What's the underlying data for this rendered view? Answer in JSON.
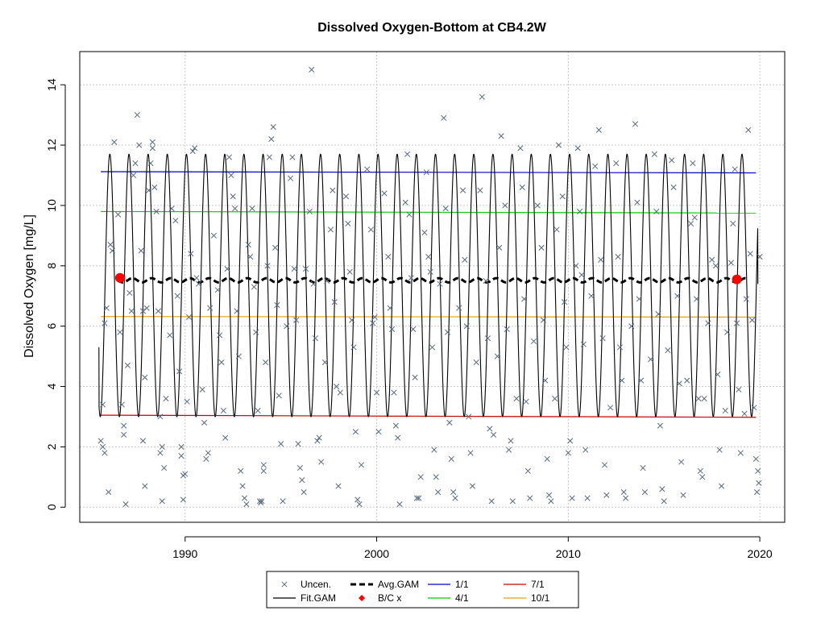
{
  "chart_data": {
    "type": "scatter",
    "title": "Dissolved Oxygen-Bottom at CB4.2W",
    "xlabel": "",
    "ylabel": "Dissolved Oxygen [mg/L]",
    "xlim": [
      1984.5,
      2021.3
    ],
    "ylim": [
      -0.5,
      15.1
    ],
    "x_ticks": [
      1990,
      2000,
      2010,
      2020
    ],
    "y_ticks": [
      0,
      2,
      4,
      6,
      8,
      10,
      12,
      14
    ],
    "x_tick_labels": [
      "1990",
      "2000",
      "2010",
      "2020"
    ],
    "y_tick_labels": [
      "0",
      "2",
      "4",
      "6",
      "8",
      "10",
      "12",
      "14"
    ],
    "grid": true,
    "legend_position": "bottom-center",
    "colors": {
      "uncensored": "#5a6a80",
      "fit_gam": "#000000",
      "avg_gam": "#000000",
      "bc": "#ff0000",
      "p1_1": "#0000cd",
      "p4_1": "#00cd00",
      "p7_1": "#cd0000",
      "p10_1": "#e8a000"
    },
    "legend": [
      {
        "key": "uncensored",
        "label": "Uncen.",
        "symbol": "x"
      },
      {
        "key": "avg_gam",
        "label": "Avg.GAM",
        "symbol": "dash-thick"
      },
      {
        "key": "p1_1",
        "label": "1/1",
        "symbol": "line"
      },
      {
        "key": "p7_1",
        "label": "7/1",
        "symbol": "line"
      },
      {
        "key": "fit_gam",
        "label": "Fit.GAM",
        "symbol": "line"
      },
      {
        "key": "bc",
        "label": "B/C x",
        "symbol": "diamond"
      },
      {
        "key": "p4_1",
        "label": "4/1",
        "symbol": "line"
      },
      {
        "key": "p10_1",
        "label": "10/1",
        "symbol": "line"
      }
    ],
    "fit_gam": {
      "start": 1985.5,
      "end": 2019.9,
      "mean": 7.35,
      "amplitude": 4.35,
      "peak_fraction": 0.07,
      "start_value": 5.3,
      "end_value": 7.4
    },
    "avg_gam": {
      "start": 1986.5,
      "end": 2019.3,
      "mean": 7.52,
      "wiggle": 0.07
    },
    "bc_points": [
      {
        "x": 1986.6,
        "y": 7.6
      },
      {
        "x": 2018.8,
        "y": 7.55
      }
    ],
    "reference_lines": [
      {
        "key": "p1_1",
        "x": [
          1985.6,
          2019.8
        ],
        "y": [
          11.12,
          11.08
        ]
      },
      {
        "key": "p4_1",
        "x": [
          1985.6,
          2019.8
        ],
        "y": [
          9.8,
          9.75
        ]
      },
      {
        "key": "p10_1",
        "x": [
          1985.6,
          2019.8
        ],
        "y": [
          6.32,
          6.3
        ]
      },
      {
        "key": "p7_1",
        "x": [
          1985.6,
          2019.8
        ],
        "y": [
          3.05,
          2.98
        ]
      }
    ],
    "uncensored_points": [
      [
        1985.6,
        2.2
      ],
      [
        1985.7,
        2.0
      ],
      [
        1985.8,
        1.8
      ],
      [
        1985.7,
        3.4
      ],
      [
        1985.8,
        6.1
      ],
      [
        1985.9,
        6.6
      ],
      [
        1986.0,
        0.5
      ],
      [
        1986.1,
        8.7
      ],
      [
        1986.2,
        8.5
      ],
      [
        1986.3,
        12.1
      ],
      [
        1986.5,
        9.7
      ],
      [
        1986.6,
        5.8
      ],
      [
        1986.7,
        3.4
      ],
      [
        1986.8,
        2.4
      ],
      [
        1986.8,
        2.7
      ],
      [
        1986.9,
        0.1
      ],
      [
        1987.0,
        4.7
      ],
      [
        1987.1,
        7.1
      ],
      [
        1987.2,
        6.5
      ],
      [
        1987.3,
        11.0
      ],
      [
        1987.4,
        11.4
      ],
      [
        1987.5,
        13.0
      ],
      [
        1987.6,
        12.0
      ],
      [
        1987.7,
        8.5
      ],
      [
        1987.8,
        6.5
      ],
      [
        1987.8,
        2.2
      ],
      [
        1987.9,
        0.7
      ],
      [
        1987.9,
        4.3
      ],
      [
        1988.0,
        6.6
      ],
      [
        1988.1,
        10.5
      ],
      [
        1988.2,
        11.4
      ],
      [
        1988.3,
        12.1
      ],
      [
        1988.3,
        11.9
      ],
      [
        1988.4,
        10.6
      ],
      [
        1988.5,
        9.8
      ],
      [
        1988.6,
        6.5
      ],
      [
        1988.7,
        3.0
      ],
      [
        1988.7,
        1.8
      ],
      [
        1988.8,
        0.2
      ],
      [
        1988.8,
        2.0
      ],
      [
        1988.9,
        1.3
      ],
      [
        1989.0,
        3.6
      ],
      [
        1989.2,
        5.7
      ],
      [
        1989.3,
        9.9
      ],
      [
        1989.5,
        9.5
      ],
      [
        1989.6,
        7.0
      ],
      [
        1989.7,
        4.5
      ],
      [
        1989.8,
        2.0
      ],
      [
        1989.8,
        1.7
      ],
      [
        1989.9,
        0.25
      ],
      [
        1989.9,
        1.05
      ],
      [
        1990.0,
        1.1
      ],
      [
        1990.1,
        3.5
      ],
      [
        1990.2,
        6.3
      ],
      [
        1990.3,
        8.4
      ],
      [
        1990.4,
        11.8
      ],
      [
        1990.5,
        11.9
      ],
      [
        1990.6,
        7.6
      ],
      [
        1990.7,
        7.4
      ],
      [
        1990.9,
        3.9
      ],
      [
        1991.0,
        2.8
      ],
      [
        1991.1,
        1.6
      ],
      [
        1991.2,
        1.8
      ],
      [
        1991.3,
        6.6
      ],
      [
        1991.5,
        9.0
      ],
      [
        1991.7,
        7.2
      ],
      [
        1991.8,
        5.7
      ],
      [
        1991.9,
        4.8
      ],
      [
        1992.0,
        3.2
      ],
      [
        1992.1,
        2.3
      ],
      [
        1992.2,
        7.9
      ],
      [
        1992.3,
        11.6
      ],
      [
        1992.4,
        11.0
      ],
      [
        1992.5,
        10.3
      ],
      [
        1992.6,
        9.9
      ],
      [
        1992.7,
        6.5
      ],
      [
        1992.8,
        5.0
      ],
      [
        1992.9,
        1.2
      ],
      [
        1993.0,
        0.7
      ],
      [
        1993.1,
        0.3
      ],
      [
        1993.2,
        0.1
      ],
      [
        1993.3,
        8.7
      ],
      [
        1993.4,
        8.3
      ],
      [
        1993.5,
        9.9
      ],
      [
        1993.6,
        7.3
      ],
      [
        1993.7,
        5.8
      ],
      [
        1993.8,
        3.2
      ],
      [
        1993.9,
        0.2
      ],
      [
        1993.95,
        0.15
      ],
      [
        1994.0,
        0.2
      ],
      [
        1994.1,
        1.4
      ],
      [
        1994.1,
        1.2
      ],
      [
        1994.2,
        4.8
      ],
      [
        1994.3,
        8.0
      ],
      [
        1994.4,
        11.6
      ],
      [
        1994.5,
        12.2
      ],
      [
        1994.6,
        12.6
      ],
      [
        1994.7,
        8.6
      ],
      [
        1994.8,
        6.7
      ],
      [
        1994.9,
        3.7
      ],
      [
        1995.0,
        2.1
      ],
      [
        1995.1,
        0.2
      ],
      [
        1995.3,
        6.0
      ],
      [
        1995.5,
        10.9
      ],
      [
        1995.6,
        11.6
      ],
      [
        1995.7,
        7.9
      ],
      [
        1995.8,
        6.2
      ],
      [
        1995.9,
        2.1
      ],
      [
        1996.0,
        1.3
      ],
      [
        1996.1,
        0.9
      ],
      [
        1996.2,
        0.5
      ],
      [
        1996.3,
        7.9
      ],
      [
        1996.5,
        9.8
      ],
      [
        1996.6,
        14.5
      ],
      [
        1996.7,
        7.4
      ],
      [
        1996.8,
        5.6
      ],
      [
        1996.9,
        2.2
      ],
      [
        1997.0,
        2.3
      ],
      [
        1997.1,
        1.5
      ],
      [
        1997.3,
        4.8
      ],
      [
        1997.4,
        7.5
      ],
      [
        1997.6,
        9.2
      ],
      [
        1997.7,
        10.5
      ],
      [
        1997.8,
        6.8
      ],
      [
        1997.9,
        4.0
      ],
      [
        1998.0,
        0.7
      ],
      [
        1998.1,
        3.8
      ],
      [
        1998.4,
        10.3
      ],
      [
        1998.5,
        9.4
      ],
      [
        1998.6,
        7.8
      ],
      [
        1998.7,
        6.2
      ],
      [
        1998.8,
        5.3
      ],
      [
        1998.9,
        2.5
      ],
      [
        1999.0,
        0.25
      ],
      [
        1999.1,
        0.1
      ],
      [
        1999.2,
        1.4
      ],
      [
        1999.5,
        11.2
      ],
      [
        1999.7,
        9.2
      ],
      [
        1999.8,
        6.1
      ],
      [
        1999.9,
        6.3
      ],
      [
        2000.0,
        3.8
      ],
      [
        2000.1,
        2.5
      ],
      [
        2000.4,
        10.4
      ],
      [
        2000.6,
        8.3
      ],
      [
        2000.7,
        6.6
      ],
      [
        2000.8,
        5.9
      ],
      [
        2000.9,
        3.8
      ],
      [
        2001.0,
        2.7
      ],
      [
        2001.1,
        2.3
      ],
      [
        2001.2,
        0.1
      ],
      [
        2001.5,
        10.1
      ],
      [
        2001.6,
        11.7
      ],
      [
        2001.7,
        9.7
      ],
      [
        2001.8,
        7.6
      ],
      [
        2001.9,
        5.9
      ],
      [
        2002.0,
        4.3
      ],
      [
        2002.1,
        0.3
      ],
      [
        2002.2,
        0.3
      ],
      [
        2002.3,
        1.0
      ],
      [
        2002.5,
        9.1
      ],
      [
        2002.6,
        11.1
      ],
      [
        2002.7,
        8.3
      ],
      [
        2002.8,
        7.8
      ],
      [
        2002.9,
        5.3
      ],
      [
        2003.0,
        1.9
      ],
      [
        2003.1,
        1.0
      ],
      [
        2003.2,
        0.5
      ],
      [
        2003.3,
        7.4
      ],
      [
        2003.5,
        12.9
      ],
      [
        2003.6,
        9.9
      ],
      [
        2003.7,
        5.8
      ],
      [
        2003.8,
        2.8
      ],
      [
        2003.9,
        1.6
      ],
      [
        2004.0,
        0.5
      ],
      [
        2004.1,
        0.3
      ],
      [
        2004.3,
        6.6
      ],
      [
        2004.5,
        10.5
      ],
      [
        2004.6,
        8.2
      ],
      [
        2004.7,
        6.0
      ],
      [
        2004.8,
        3.0
      ],
      [
        2004.9,
        1.8
      ],
      [
        2005.0,
        0.7
      ],
      [
        2005.2,
        4.8
      ],
      [
        2005.4,
        10.5
      ],
      [
        2005.5,
        13.6
      ],
      [
        2005.7,
        7.5
      ],
      [
        2005.8,
        5.6
      ],
      [
        2005.9,
        2.6
      ],
      [
        2006.0,
        0.2
      ],
      [
        2006.1,
        2.4
      ],
      [
        2006.3,
        5.0
      ],
      [
        2006.4,
        8.6
      ],
      [
        2006.5,
        12.3
      ],
      [
        2006.7,
        10.0
      ],
      [
        2006.8,
        5.9
      ],
      [
        2006.9,
        1.9
      ],
      [
        2007.0,
        2.2
      ],
      [
        2007.1,
        0.2
      ],
      [
        2007.3,
        3.6
      ],
      [
        2007.5,
        11.9
      ],
      [
        2007.6,
        10.6
      ],
      [
        2007.7,
        6.9
      ],
      [
        2007.8,
        3.5
      ],
      [
        2007.9,
        1.2
      ],
      [
        2008.0,
        0.3
      ],
      [
        2008.2,
        5.5
      ],
      [
        2008.4,
        10.0
      ],
      [
        2008.6,
        8.6
      ],
      [
        2008.7,
        6.2
      ],
      [
        2008.8,
        4.2
      ],
      [
        2008.9,
        1.6
      ],
      [
        2009.0,
        0.4
      ],
      [
        2009.1,
        0.2
      ],
      [
        2009.3,
        3.6
      ],
      [
        2009.4,
        9.2
      ],
      [
        2009.5,
        12.0
      ],
      [
        2009.7,
        10.3
      ],
      [
        2009.8,
        6.8
      ],
      [
        2009.9,
        5.3
      ],
      [
        2010.0,
        1.8
      ],
      [
        2010.1,
        2.2
      ],
      [
        2010.2,
        0.3
      ],
      [
        2010.4,
        8.0
      ],
      [
        2010.5,
        11.9
      ],
      [
        2010.6,
        9.8
      ],
      [
        2010.7,
        7.7
      ],
      [
        2010.8,
        5.4
      ],
      [
        2010.9,
        1.9
      ],
      [
        2011.0,
        0.3
      ],
      [
        2011.2,
        7.0
      ],
      [
        2011.4,
        11.3
      ],
      [
        2011.6,
        12.5
      ],
      [
        2011.7,
        8.2
      ],
      [
        2011.8,
        5.6
      ],
      [
        2011.9,
        1.4
      ],
      [
        2012.0,
        0.4
      ],
      [
        2012.2,
        3.3
      ],
      [
        2012.5,
        11.4
      ],
      [
        2012.6,
        8.3
      ],
      [
        2012.7,
        5.3
      ],
      [
        2012.8,
        4.2
      ],
      [
        2012.9,
        0.5
      ],
      [
        2013.0,
        0.3
      ],
      [
        2013.3,
        6.0
      ],
      [
        2013.5,
        12.7
      ],
      [
        2013.6,
        10.1
      ],
      [
        2013.7,
        6.9
      ],
      [
        2013.8,
        4.2
      ],
      [
        2013.9,
        1.3
      ],
      [
        2014.0,
        0.5
      ],
      [
        2014.3,
        4.9
      ],
      [
        2014.5,
        11.7
      ],
      [
        2014.6,
        9.8
      ],
      [
        2014.7,
        6.4
      ],
      [
        2014.8,
        2.7
      ],
      [
        2014.9,
        0.6
      ],
      [
        2015.0,
        0.2
      ],
      [
        2015.2,
        5.2
      ],
      [
        2015.4,
        11.5
      ],
      [
        2015.5,
        10.6
      ],
      [
        2015.7,
        7.0
      ],
      [
        2015.8,
        4.1
      ],
      [
        2015.9,
        1.5
      ],
      [
        2016.0,
        0.4
      ],
      [
        2016.2,
        4.2
      ],
      [
        2016.4,
        9.4
      ],
      [
        2016.5,
        11.4
      ],
      [
        2016.6,
        9.6
      ],
      [
        2016.7,
        6.9
      ],
      [
        2016.8,
        3.6
      ],
      [
        2016.9,
        1.2
      ],
      [
        2017.0,
        1.0
      ],
      [
        2017.1,
        3.6
      ],
      [
        2017.3,
        6.1
      ],
      [
        2017.5,
        8.2
      ],
      [
        2017.7,
        8.0
      ],
      [
        2017.8,
        4.4
      ],
      [
        2017.9,
        1.9
      ],
      [
        2018.0,
        0.7
      ],
      [
        2018.2,
        3.2
      ],
      [
        2018.3,
        5.8
      ],
      [
        2018.5,
        8.1
      ],
      [
        2018.6,
        9.4
      ],
      [
        2018.7,
        11.2
      ],
      [
        2018.8,
        6.1
      ],
      [
        2018.9,
        3.9
      ],
      [
        2019.0,
        1.8
      ],
      [
        2019.2,
        3.1
      ],
      [
        2019.3,
        6.9
      ],
      [
        2019.4,
        12.5
      ],
      [
        2019.5,
        8.4
      ],
      [
        2019.6,
        6.2
      ],
      [
        2019.7,
        3.3
      ],
      [
        2019.8,
        1.6
      ],
      [
        2019.85,
        0.5
      ],
      [
        2019.9,
        1.2
      ],
      [
        2019.95,
        0.8
      ],
      [
        2020.0,
        8.3
      ]
    ]
  }
}
